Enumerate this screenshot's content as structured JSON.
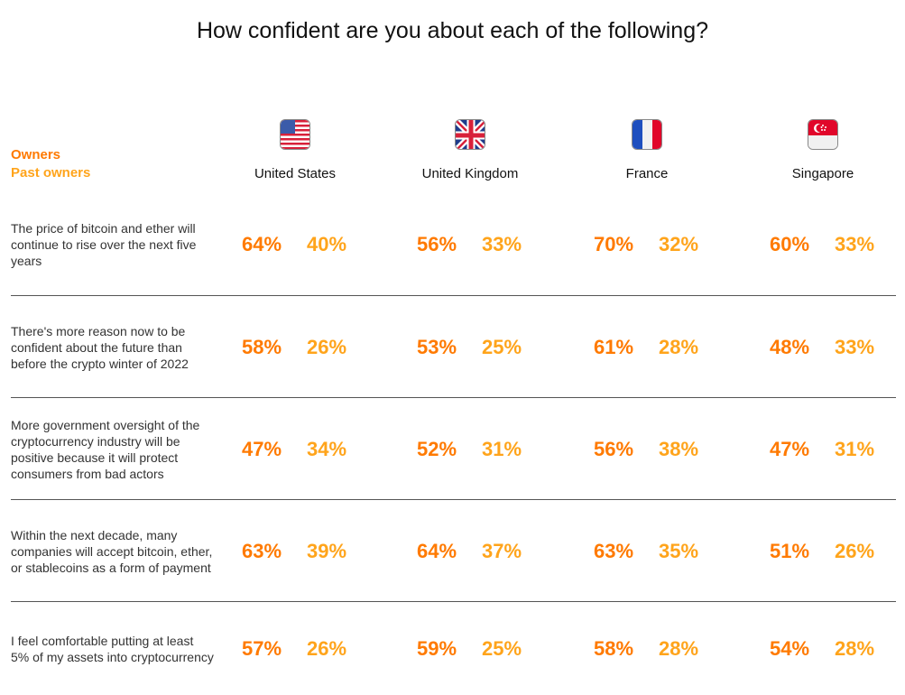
{
  "chart_data": {
    "type": "table",
    "title": "How confident are you about each of the following?",
    "legend": [
      {
        "name": "Owners",
        "color": "#FF7A00"
      },
      {
        "name": "Past owners",
        "color": "#FFA41B"
      }
    ],
    "countries": [
      {
        "name": "United States",
        "flag": "us-flag-icon"
      },
      {
        "name": "United Kingdom",
        "flag": "uk-flag-icon"
      },
      {
        "name": "France",
        "flag": "france-flag-icon"
      },
      {
        "name": "Singapore",
        "flag": "singapore-flag-icon"
      }
    ],
    "rows": [
      {
        "statement": "The price of bitcoin and ether will continue to rise over the next five years",
        "values": [
          [
            "64%",
            "40%"
          ],
          [
            "56%",
            "33%"
          ],
          [
            "70%",
            "32%"
          ],
          [
            "60%",
            "33%"
          ]
        ]
      },
      {
        "statement": "There's more reason now to be confident about the future than before the crypto winter of 2022",
        "values": [
          [
            "58%",
            "26%"
          ],
          [
            "53%",
            "25%"
          ],
          [
            "61%",
            "28%"
          ],
          [
            "48%",
            "33%"
          ]
        ]
      },
      {
        "statement": "More government oversight of the cryptocurrency industry will be positive because it will protect consumers from bad actors",
        "values": [
          [
            "47%",
            "34%"
          ],
          [
            "52%",
            "31%"
          ],
          [
            "56%",
            "38%"
          ],
          [
            "47%",
            "31%"
          ]
        ]
      },
      {
        "statement": "Within the next decade, many companies will accept bitcoin, ether, or stablecoins as a form of payment",
        "values": [
          [
            "63%",
            "39%"
          ],
          [
            "64%",
            "37%"
          ],
          [
            "63%",
            "35%"
          ],
          [
            "51%",
            "26%"
          ]
        ]
      },
      {
        "statement": "I feel comfortable putting at least 5% of my assets into cryptocurrency",
        "values": [
          [
            "57%",
            "26%"
          ],
          [
            "59%",
            "25%"
          ],
          [
            "58%",
            "28%"
          ],
          [
            "54%",
            "28%"
          ]
        ]
      }
    ]
  }
}
